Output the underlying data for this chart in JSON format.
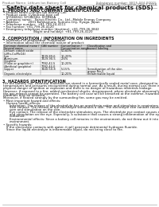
{
  "title": "Safety data sheet for chemical products (SDS)",
  "header_left": "Product Name: Lithium Ion Battery Cell",
  "header_right_1": "Substance number: SB15-044-00015",
  "header_right_2": "Establishment / Revision: Dec.1.2016",
  "section1_title": "1. PRODUCT AND COMPANY IDENTIFICATION",
  "section1_lines": [
    "• Product name: Lithium Ion Battery Cell",
    "• Product code: Cylindrical-type cell",
    "   SY1865SU, SY1865SU, SY1865A",
    "• Company name:   Sanyo Electric Co., Ltd., Mobile Energy Company",
    "• Address:         2001 Kamkamura, Sumoto-City, Hyogo, Japan",
    "• Telephone number:  +81-799-24-4111",
    "• Fax number: +81-799-26-4120",
    "• Emergency telephone number (daytime): +81-799-26-3842",
    "                              (Night and holiday): +81-799-26-4120"
  ],
  "section2_title": "2. COMPOSITION / INFORMATION ON INGREDIENTS",
  "section2_line1": "• Substance or preparation: Preparation",
  "section2_line2": "• Information about the chemical nature of product:",
  "table_headers": [
    "Common chemical name /",
    "CAS number",
    "Concentration /",
    "Classification and"
  ],
  "table_headers2": [
    "Several name",
    "",
    "Concentration range",
    "hazard labeling"
  ],
  "table_rows": [
    [
      "Lithium cobalt oxide",
      "",
      "50-60%",
      ""
    ],
    [
      "(LiMn-Co/PbO4)",
      "",
      "",
      ""
    ],
    [
      "Iron",
      "7439-89-6",
      "10-20%",
      ""
    ],
    [
      "Aluminum",
      "7429-90-5",
      "2-6%",
      ""
    ],
    [
      "Graphite",
      "",
      "",
      ""
    ],
    [
      "(Flake or graphite+)",
      "7782-42-5",
      "10-20%",
      ""
    ],
    [
      "(Artificial graphite)",
      "7782-44-0",
      "",
      ""
    ],
    [
      "Copper",
      "7440-50-8",
      "5-15%",
      "Sensitization of the skin"
    ],
    [
      "",
      "",
      "",
      "group No.2"
    ],
    [
      "Organic electrolyte",
      "",
      "10-20%",
      "Inflammable liquid"
    ]
  ],
  "section3_title": "3. HAZARDS IDENTIFICATION",
  "section3_lines": [
    "For the battery cell, chemical materials are stored in a hermetically sealed metal case, designed to withstand",
    "temperatures and pressures encountered during normal use. As a result, during normal use, there is no",
    "physical danger of ignition or explosion and there is no danger of hazardous materials leakage.",
    "",
    "However, if exposed to a fire, added mechanical shocks, decomposed, where electrolyte abnormally releases,",
    "the gas release cannot be operated. The battery cell case will be breached at the extreme, hazardous",
    "materials may be released.",
    "Moreover, if heated strongly by the surrounding fire, some gas may be emitted.",
    "",
    "• Most important hazard and effects:",
    "  Human health effects:",
    "    Inhalation: The release of the electrolyte has an anesthesia action and stimulates in respiratory tract.",
    "    Skin contact: The release of the electrolyte stimulates a skin. The electrolyte skin contact causes a",
    "    sore and stimulation on the skin.",
    "    Eye contact: The release of the electrolyte stimulates eyes. The electrolyte eye contact causes a sore",
    "    and stimulation on the eye. Especially, a substance that causes a strong inflammation of the eye is",
    "    contained.",
    "",
    "    Environmental effects: Since a battery cell remains in the environment, do not throw out it into the",
    "    environment.",
    "",
    "• Specific hazards:",
    "  If the electrolyte contacts with water, it will generate detrimental hydrogen fluoride.",
    "  Since the liquid electrolyte is inflammable liquid, do not bring close to fire."
  ],
  "bg_color": "#ffffff",
  "text_color": "#111111",
  "gray_color": "#666666",
  "table_header_bg": "#cccccc",
  "title_fontsize": 5.0,
  "header_fontsize": 3.0,
  "section_fontsize": 3.5,
  "body_fontsize": 2.8,
  "table_fontsize": 2.6
}
